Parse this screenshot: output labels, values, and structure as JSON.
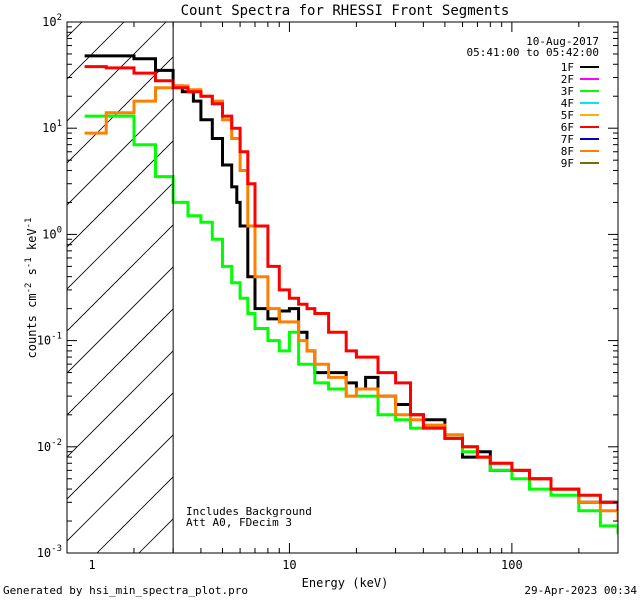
{
  "chart_data": {
    "type": "line",
    "title": "Count Spectra for RHESSI Front Segments",
    "xlabel": "Energy (keV)",
    "ylabel_parts": {
      "base": "counts cm",
      "exp1": "-2",
      "mid": " s",
      "exp2": "-1",
      "end": " keV",
      "exp3": "-1"
    },
    "xscale": "log",
    "yscale": "log",
    "xlim": [
      1,
      300
    ],
    "ylim": [
      0.001,
      100
    ],
    "x_ticks": [
      {
        "value": 10,
        "label": "10"
      },
      {
        "value": 100,
        "label": "100"
      }
    ],
    "x_tick_1_label": "1",
    "y_ticks": [
      {
        "value": 0.001,
        "base": "10",
        "exp": "-3"
      },
      {
        "value": 0.01,
        "base": "10",
        "exp": "-2"
      },
      {
        "value": 0.1,
        "base": "10",
        "exp": "-1"
      },
      {
        "value": 1,
        "base": "10",
        "exp": "0"
      },
      {
        "value": 10,
        "base": "10",
        "exp": "1"
      },
      {
        "value": 100,
        "base": "10",
        "exp": "2"
      }
    ],
    "hatch_region_keV": [
      1,
      3
    ],
    "date": "10-Aug-2017",
    "time_range": "05:41:00 to 05:42:00",
    "legend_position": "top-right",
    "legend": [
      {
        "label": "1F",
        "color": "#000000"
      },
      {
        "label": "2F",
        "color": "#ff00ff"
      },
      {
        "label": "3F",
        "color": "#00ff00"
      },
      {
        "label": "4F",
        "color": "#00e5ff"
      },
      {
        "label": "5F",
        "color": "#ffb000"
      },
      {
        "label": "6F",
        "color": "#ff0000"
      },
      {
        "label": "7F",
        "color": "#0000c8"
      },
      {
        "label": "8F",
        "color": "#ff8000"
      },
      {
        "label": "9F",
        "color": "#7a6a00"
      }
    ],
    "annotations": [
      "Includes Background",
      "Att A0, FDecim 3"
    ],
    "series": [
      {
        "name": "1F",
        "color": "#000000",
        "x": [
          1.2,
          1.5,
          2.0,
          2.5,
          3.0,
          3.3,
          3.7,
          4.0,
          4.5,
          5.0,
          5.5,
          5.8,
          6.0,
          6.5,
          7.0,
          8.0,
          9.0,
          10.0,
          11.0,
          12.0,
          13.0,
          15.0,
          18.0,
          20.0,
          22.0,
          25.0,
          30.0,
          35.0,
          40.0,
          50.0,
          60.0,
          70.0,
          80.0,
          100.0,
          120.0,
          150.0,
          200.0,
          250.0,
          300.0
        ],
        "y": [
          48,
          48,
          45,
          35,
          25,
          22,
          18,
          12,
          8,
          4.5,
          2.8,
          2.0,
          1.2,
          0.4,
          0.2,
          0.16,
          0.19,
          0.2,
          0.12,
          0.08,
          0.05,
          0.05,
          0.04,
          0.035,
          0.045,
          0.03,
          0.025,
          0.02,
          0.018,
          0.012,
          0.008,
          0.009,
          0.006,
          0.006,
          0.005,
          0.004,
          0.003,
          0.003,
          0.0025
        ]
      },
      {
        "name": "3F",
        "color": "#00ff00",
        "x": [
          1.2,
          1.5,
          2.0,
          2.5,
          3.0,
          3.5,
          4.0,
          4.5,
          5.0,
          5.5,
          6.0,
          6.5,
          7.0,
          8.0,
          9.0,
          10.0,
          11.0,
          12.0,
          13.0,
          15.0,
          18.0,
          20.0,
          25.0,
          30.0,
          35.0,
          40.0,
          50.0,
          60.0,
          70.0,
          80.0,
          100.0,
          120.0,
          150.0,
          200.0,
          250.0,
          300.0
        ],
        "y": [
          13,
          13,
          7,
          3.5,
          2.0,
          1.5,
          1.3,
          0.9,
          0.5,
          0.35,
          0.25,
          0.18,
          0.13,
          0.1,
          0.08,
          0.12,
          0.06,
          0.06,
          0.04,
          0.035,
          0.03,
          0.03,
          0.02,
          0.018,
          0.015,
          0.015,
          0.012,
          0.009,
          0.008,
          0.006,
          0.005,
          0.004,
          0.0035,
          0.0025,
          0.0018,
          0.0015
        ]
      },
      {
        "name": "8F",
        "color": "#ff8000",
        "x": [
          1.2,
          1.5,
          2.0,
          2.5,
          3.0,
          3.5,
          4.0,
          4.5,
          5.0,
          5.5,
          6.0,
          6.5,
          7.0,
          8.0,
          9.0,
          10.0,
          11.0,
          12.0,
          13.0,
          15.0,
          18.0,
          20.0,
          25.0,
          30.0,
          35.0,
          40.0,
          50.0,
          60.0,
          70.0,
          80.0,
          100.0,
          120.0,
          150.0,
          200.0,
          250.0,
          300.0
        ],
        "y": [
          9,
          14,
          18,
          24,
          25,
          23,
          20,
          18,
          12,
          8,
          4,
          1.2,
          0.4,
          0.2,
          0.15,
          0.15,
          0.1,
          0.08,
          0.06,
          0.045,
          0.03,
          0.035,
          0.03,
          0.02,
          0.018,
          0.016,
          0.013,
          0.01,
          0.008,
          0.007,
          0.006,
          0.005,
          0.004,
          0.003,
          0.0025,
          0.002
        ]
      },
      {
        "name": "6F",
        "color": "#ff0000",
        "x": [
          1.2,
          1.5,
          2.0,
          2.5,
          3.0,
          3.5,
          4.0,
          4.5,
          5.0,
          5.5,
          6.0,
          6.5,
          7.0,
          8.0,
          9.0,
          10.0,
          11.0,
          12.0,
          13.0,
          15.0,
          18.0,
          20.0,
          25.0,
          30.0,
          35.0,
          40.0,
          50.0,
          60.0,
          70.0,
          80.0,
          100.0,
          120.0,
          150.0,
          200.0,
          250.0,
          300.0
        ],
        "y": [
          38,
          37,
          33,
          28,
          24,
          22,
          20,
          17,
          13,
          10,
          6,
          3,
          1.2,
          0.5,
          0.3,
          0.25,
          0.22,
          0.2,
          0.18,
          0.12,
          0.08,
          0.07,
          0.05,
          0.04,
          0.02,
          0.015,
          0.012,
          0.01,
          0.008,
          0.007,
          0.006,
          0.005,
          0.004,
          0.0035,
          0.003,
          0.0025
        ]
      }
    ]
  },
  "footer": {
    "generated_by": "Generated by hsi_min_spectra_plot.pro",
    "timestamp": "29-Apr-2023 00:34"
  }
}
